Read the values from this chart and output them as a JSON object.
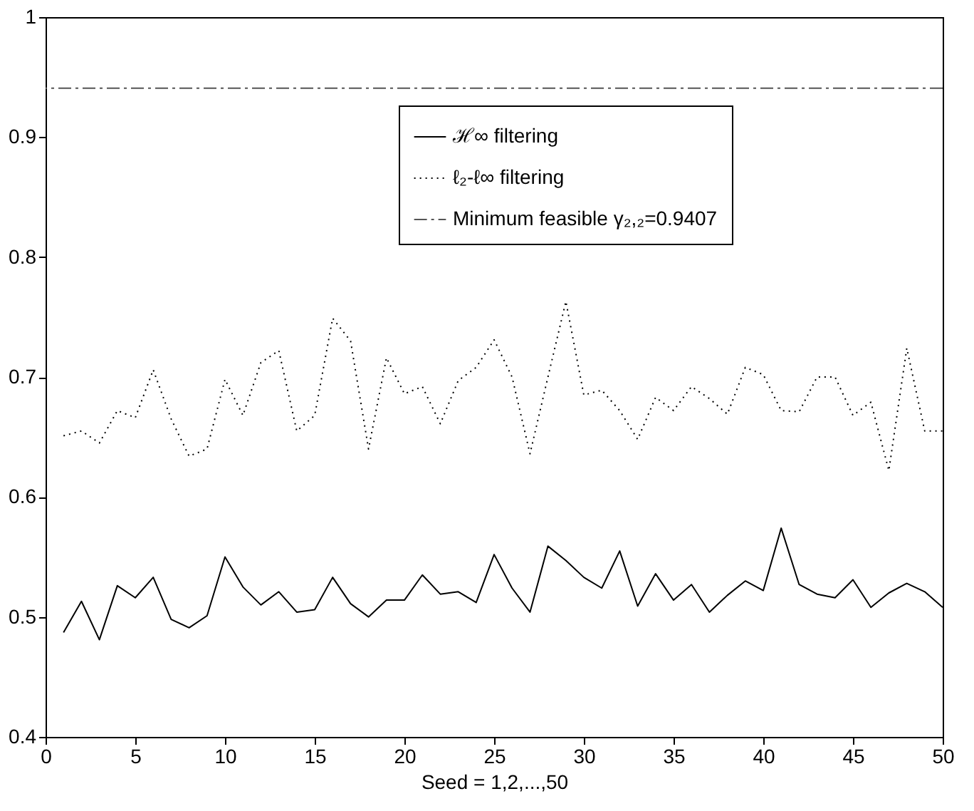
{
  "chart_data": {
    "type": "line",
    "xlabel": "Seed = 1,2,...,50",
    "xlim": [
      0,
      50
    ],
    "xticks": [
      0,
      5,
      10,
      15,
      20,
      25,
      30,
      35,
      40,
      45,
      50
    ],
    "ylim": [
      0.4,
      1
    ],
    "yticks": [
      0.4,
      0.5,
      0.6,
      0.7,
      0.8,
      0.9,
      1
    ],
    "grid": false,
    "legend": "top right",
    "marker": "none",
    "x": [
      1,
      2,
      3,
      4,
      5,
      6,
      7,
      8,
      9,
      10,
      11,
      12,
      13,
      14,
      15,
      16,
      17,
      18,
      19,
      20,
      21,
      22,
      23,
      24,
      25,
      26,
      27,
      28,
      29,
      30,
      31,
      32,
      33,
      34,
      35,
      36,
      37,
      38,
      39,
      40,
      41,
      42,
      43,
      44,
      45,
      46,
      47,
      48,
      49,
      50
    ],
    "series": [
      {
        "name": "ℋ∞ filtering",
        "color": "#000000",
        "line_style": "solid",
        "values": [
          0.487,
          0.513,
          0.481,
          0.526,
          0.516,
          0.533,
          0.498,
          0.491,
          0.501,
          0.55,
          0.525,
          0.51,
          0.521,
          0.504,
          0.506,
          0.533,
          0.511,
          0.5,
          0.514,
          0.514,
          0.535,
          0.519,
          0.521,
          0.512,
          0.552,
          0.524,
          0.504,
          0.559,
          0.547,
          0.533,
          0.524,
          0.555,
          0.509,
          0.536,
          0.514,
          0.527,
          0.504,
          0.518,
          0.53,
          0.522,
          0.574,
          0.527,
          0.519,
          0.516,
          0.531,
          0.508,
          0.52,
          0.528,
          0.521,
          0.508
        ]
      },
      {
        "name": "ℓ₂-ℓ∞ filtering",
        "color": "#000000",
        "line_style": "dotted",
        "values": [
          0.651,
          0.655,
          0.645,
          0.672,
          0.666,
          0.706,
          0.665,
          0.634,
          0.64,
          0.698,
          0.668,
          0.712,
          0.722,
          0.655,
          0.668,
          0.749,
          0.73,
          0.64,
          0.716,
          0.686,
          0.692,
          0.661,
          0.697,
          0.708,
          0.731,
          0.7,
          0.636,
          0.7,
          0.763,
          0.685,
          0.689,
          0.672,
          0.648,
          0.683,
          0.672,
          0.692,
          0.682,
          0.669,
          0.708,
          0.702,
          0.672,
          0.671,
          0.7,
          0.7,
          0.668,
          0.679,
          0.622,
          0.724,
          0.655,
          0.655
        ]
      }
    ],
    "ref_lines": [
      {
        "axis": "y",
        "value": 0.9407,
        "label": "Minimum feasible γ₂,₂=0.9407",
        "color": "#555555",
        "line_style": "dashdot"
      }
    ]
  }
}
